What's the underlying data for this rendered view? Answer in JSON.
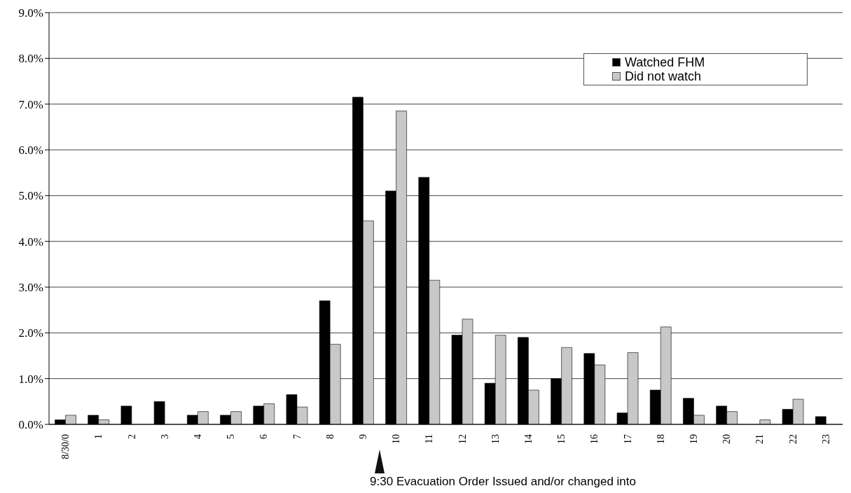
{
  "chart_data": {
    "type": "bar",
    "categories": [
      "8/30/0",
      "1",
      "2",
      "3",
      "4",
      "5",
      "6",
      "7",
      "8",
      "9",
      "10",
      "11",
      "12",
      "13",
      "14",
      "15",
      "16",
      "17",
      "18",
      "19",
      "20",
      "21",
      "22",
      "23"
    ],
    "series": [
      {
        "name": "Watched FHM",
        "color": "#000000",
        "values": [
          0.1,
          0.2,
          0.4,
          0.5,
          0.2,
          0.2,
          0.4,
          0.65,
          2.7,
          7.15,
          5.1,
          5.4,
          1.95,
          0.9,
          1.9,
          1.0,
          1.55,
          0.25,
          0.75,
          0.57,
          0.4,
          0,
          0.33,
          0.17
        ]
      },
      {
        "name": "Did not watch",
        "color": "#c8c8c8",
        "values": [
          0.2,
          0.1,
          0,
          0,
          0.28,
          0.28,
          0.45,
          0.38,
          1.75,
          4.45,
          6.85,
          3.15,
          2.3,
          1.95,
          0.75,
          1.68,
          1.3,
          1.57,
          2.13,
          0.2,
          0.28,
          0.1,
          0.55,
          0
        ]
      }
    ],
    "ylim": [
      0,
      9
    ],
    "yticks": [
      {
        "value": 0,
        "label": "0.0%"
      },
      {
        "value": 1,
        "label": "1.0%"
      },
      {
        "value": 2,
        "label": "2.0%"
      },
      {
        "value": 3,
        "label": "3.0%"
      },
      {
        "value": 4,
        "label": "4.0%"
      },
      {
        "value": 5,
        "label": "5.0%"
      },
      {
        "value": 6,
        "label": "6.0%"
      },
      {
        "value": 7,
        "label": "7.0%"
      },
      {
        "value": 8,
        "label": "8.0%"
      },
      {
        "value": 9,
        "label": "9.0%"
      }
    ],
    "grid": "y",
    "legend": "top right",
    "annotations": [
      "9:30 Evacuation Order Issued and/or changed into"
    ]
  }
}
